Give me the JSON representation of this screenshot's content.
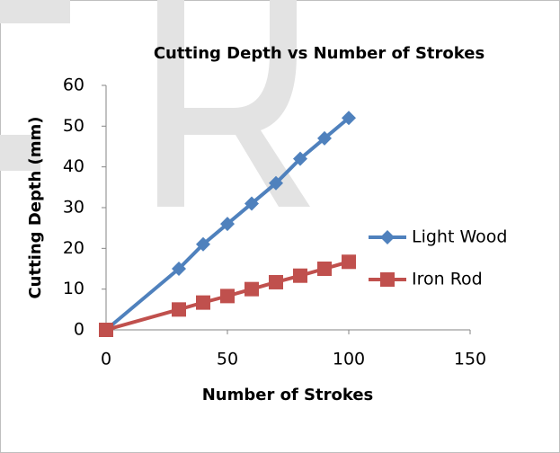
{
  "chart_data": {
    "type": "scatter-line",
    "title": "Cutting Depth vs Number of Strokes",
    "x_label": "Number of Strokes",
    "y_label": "Cutting Depth (mm)",
    "x": [
      0,
      30,
      40,
      50,
      60,
      70,
      80,
      90,
      100
    ],
    "series": [
      {
        "name": "Light Wood",
        "color": "#4f81bd",
        "marker": "diamond",
        "values": [
          0,
          15,
          21,
          26,
          31,
          36,
          42,
          47,
          52
        ]
      },
      {
        "name": "Iron Rod",
        "color": "#c0504d",
        "marker": "square",
        "values": [
          0,
          5,
          6.7,
          8.3,
          10,
          11.7,
          13.3,
          15,
          16.7
        ]
      }
    ],
    "xlim": [
      0,
      150
    ],
    "xticks": [
      0,
      50,
      100,
      150
    ],
    "ylim": [
      0,
      60
    ],
    "yticks": [
      0,
      10,
      20,
      30,
      40,
      50,
      60
    ],
    "grid": false,
    "legend": "right"
  }
}
